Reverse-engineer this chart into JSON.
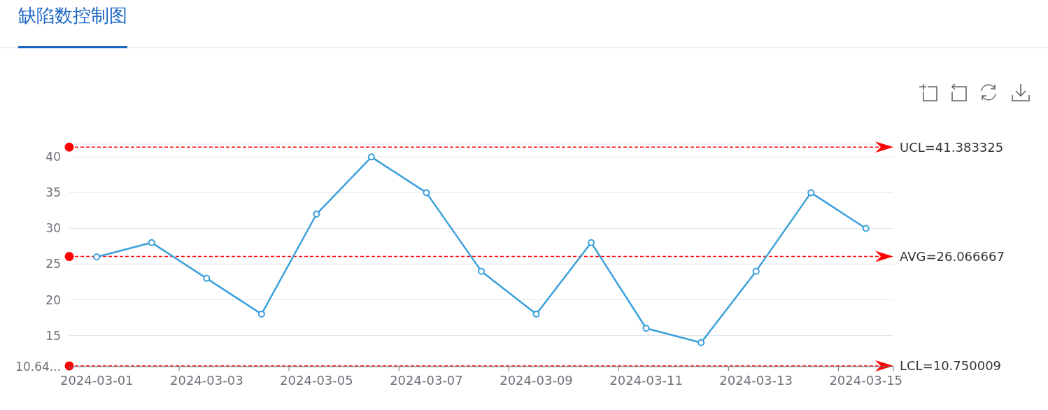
{
  "chart_data": {
    "type": "line",
    "title": "缺陷数控制图",
    "categories": [
      "2024-03-01",
      null,
      "2024-03-03",
      null,
      "2024-03-05",
      null,
      "2024-03-07",
      null,
      "2024-03-09",
      null,
      "2024-03-11",
      null,
      "2024-03-13",
      null,
      "2024-03-15"
    ],
    "values": [
      26,
      28,
      23,
      18,
      32,
      40,
      35,
      24,
      18,
      28,
      16,
      14,
      24,
      35,
      30
    ],
    "color": "#3ca0da",
    "marker": "circle",
    "ylim": [
      10.64,
      41.8
    ],
    "yticks": [
      {
        "value": 10.64,
        "label": "10.64..."
      },
      15,
      20,
      25,
      30,
      35,
      40,
      {
        "value": 41.8,
        "label": null
      }
    ],
    "grid": "y",
    "ref_lines": [
      {
        "axis": "y",
        "value": 41.383325,
        "label": "UCL=41.383325",
        "color": "#ff0000",
        "line_style": "dashed"
      },
      {
        "axis": "y",
        "value": 26.066667,
        "label": "AVG=26.066667",
        "color": "#ff0000",
        "line_style": "dashed"
      },
      {
        "axis": "y",
        "value": 10.750009,
        "label": "LCL=10.750009",
        "color": "#ff0000",
        "line_style": "dashed"
      }
    ]
  }
}
